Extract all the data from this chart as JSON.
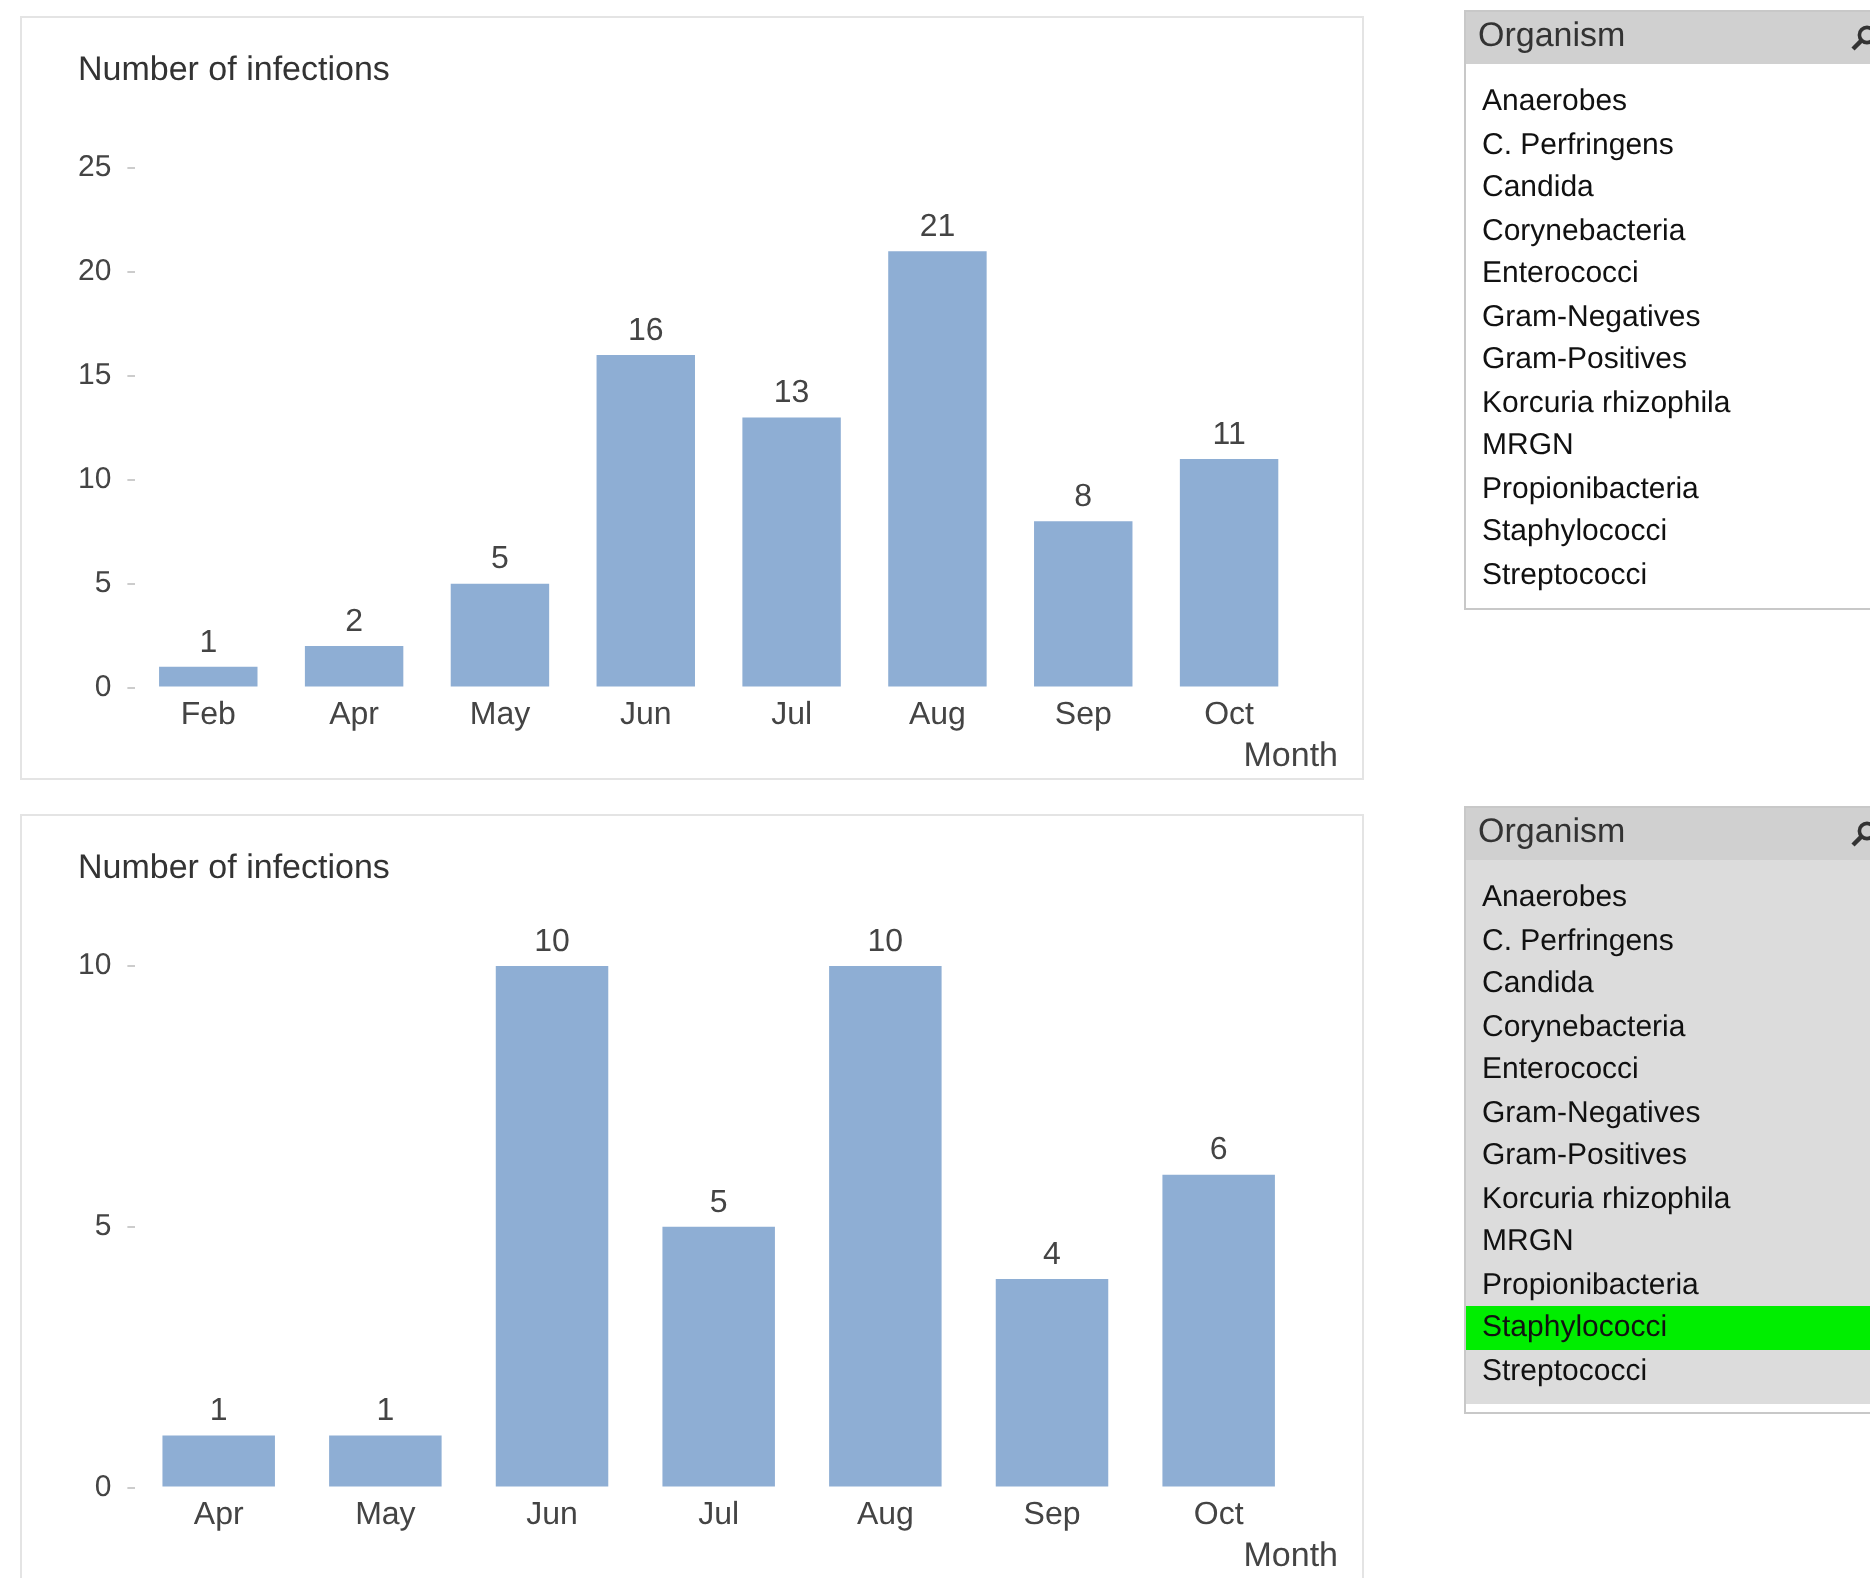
{
  "chart_data": [
    {
      "type": "bar",
      "ylabel": "Number of infections",
      "xlabel": "Month",
      "categories": [
        "Feb",
        "Apr",
        "May",
        "Jun",
        "Jul",
        "Aug",
        "Sep",
        "Oct"
      ],
      "values": [
        1,
        2,
        5,
        16,
        13,
        21,
        8,
        11
      ],
      "color": "#8eaed4",
      "ylim": [
        0,
        25
      ],
      "yticks": [
        0,
        5,
        10,
        15,
        20,
        25
      ],
      "grid": false,
      "legend": false,
      "data_labels": true
    },
    {
      "type": "other",
      "title": "Organism",
      "categories": [
        "Anaerobes",
        "C. Perfringens",
        "Candida",
        "Corynebacteria",
        "Enterococci",
        "Gram-Negatives",
        "Gram-Positives",
        "Korcuria rhizophila",
        "MRGN",
        "Propionibacteria",
        "Staphylococci",
        "Streptococci"
      ],
      "colors": [
        "#ffffff",
        "#ffffff",
        "#ffffff",
        "#ffffff",
        "#ffffff",
        "#ffffff",
        "#ffffff",
        "#ffffff",
        "#ffffff",
        "#ffffff",
        "#ffffff",
        "#ffffff"
      ]
    },
    {
      "type": "bar",
      "ylabel": "Number of infections",
      "xlabel": "Month",
      "categories": [
        "Apr",
        "May",
        "Jun",
        "Jul",
        "Aug",
        "Sep",
        "Oct"
      ],
      "values": [
        1,
        1,
        10,
        5,
        10,
        4,
        6
      ],
      "color": "#8eaed4",
      "ylim": [
        0,
        10
      ],
      "yticks": [
        0,
        5,
        10
      ],
      "grid": false,
      "legend": false,
      "data_labels": true
    },
    {
      "type": "other",
      "title": "Organism",
      "categories": [
        "Anaerobes",
        "C. Perfringens",
        "Candida",
        "Corynebacteria",
        "Enterococci",
        "Gram-Negatives",
        "Gram-Positives",
        "Korcuria rhizophila",
        "MRGN",
        "Propionibacteria",
        "Staphylococci",
        "Streptococci"
      ],
      "colors": [
        "#dcdcdc",
        "#dcdcdc",
        "#dcdcdc",
        "#dcdcdc",
        "#dcdcdc",
        "#dcdcdc",
        "#dcdcdc",
        "#dcdcdc",
        "#dcdcdc",
        "#dcdcdc",
        "#00ee00",
        "#dcdcdc"
      ]
    }
  ]
}
